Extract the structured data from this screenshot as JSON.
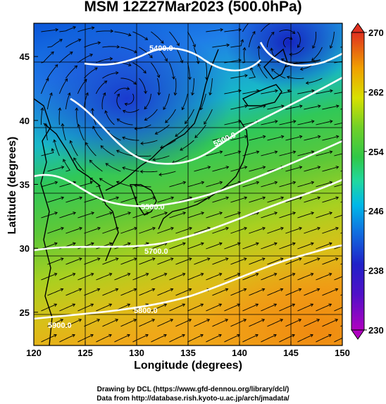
{
  "title": "MSM 12Z27Mar2023 (500.0hPa)",
  "xlabel": "Longitude (degrees)",
  "ylabel": "Latitude  (degrees)",
  "credits": {
    "line1": "Drawing by DCL (https://www.gfd-dennou.org/library/dcl/)",
    "line2": "Data from http://database.rish.kyoto-u.ac.jp/arch/jmadata/"
  },
  "map": {
    "lon_range": [
      120,
      150
    ],
    "lat_range": [
      22.4,
      47.6
    ],
    "x_ticks": [
      120,
      125,
      130,
      135,
      140,
      145,
      150
    ],
    "y_ticks": [
      25,
      30,
      35,
      40,
      45
    ],
    "contour_labels": [
      "5400.0",
      "5500.0",
      "5500.0",
      "5700.0",
      "5800.0",
      "5900.0"
    ]
  },
  "colorbar": {
    "min": 230,
    "max": 270,
    "tick_labels": [
      "270",
      "262",
      "254",
      "246",
      "238",
      "230"
    ],
    "colors": [
      "#b000c0",
      "#2020c8",
      "#00a8e0",
      "#20d070",
      "#50c840",
      "#d8e000",
      "#f0a000",
      "#e03020"
    ]
  }
}
